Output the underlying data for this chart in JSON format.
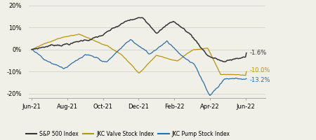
{
  "colors": {
    "sp500": "#333333",
    "valve": "#b8960c",
    "pump": "#2e6da4"
  },
  "end_labels": {
    "sp500": "-1.6%",
    "valve": "-10.0%",
    "pump": "-13.2%"
  },
  "end_label_colors": {
    "sp500": "#333333",
    "valve": "#b8960c",
    "pump": "#2e6da4"
  },
  "ytick_labels": [
    "-20%",
    "-10%",
    "0%",
    "10%",
    "20%"
  ],
  "month_labels": [
    "Jun-21",
    "Aug-21",
    "Oct-21",
    "Dec-21",
    "Feb-22",
    "Apr-22",
    "Jun-22"
  ],
  "legend_entries": [
    "S&P 500 Index",
    "JKC Valve Stock Index",
    "JKC Pump Stock Index"
  ],
  "background_color": "#f0efe8",
  "grid_color": "#cccccc",
  "n_points": 260
}
